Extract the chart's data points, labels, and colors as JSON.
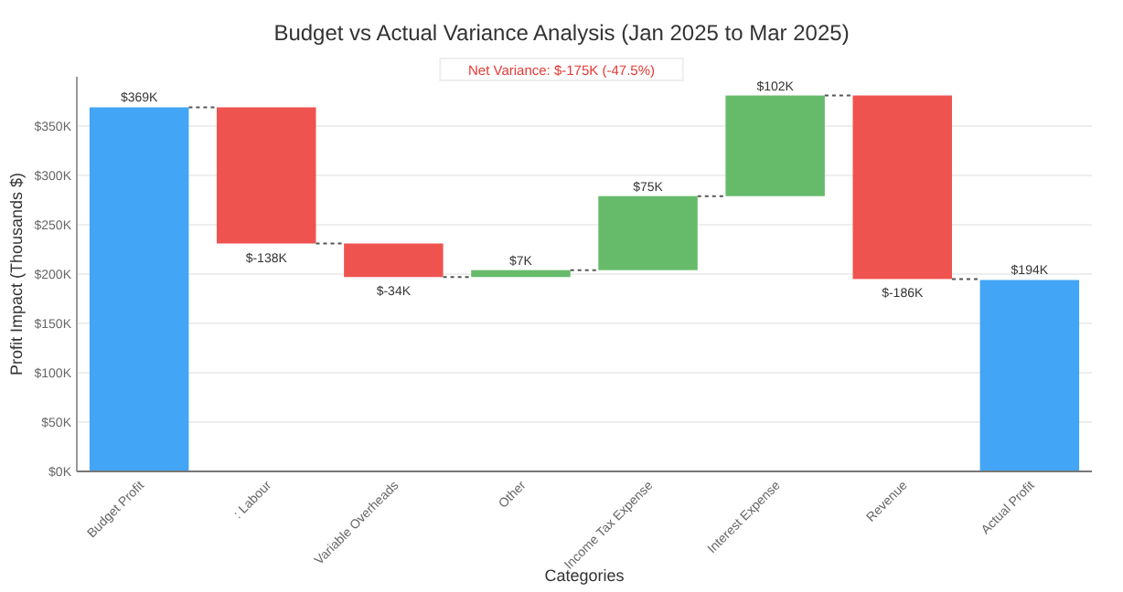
{
  "chart_data": {
    "type": "bar",
    "title": "Budget vs Actual Variance Analysis (Jan 2025 to Mar 2025)",
    "xlabel": "Categories",
    "ylabel": "Profit Impact (Thousands $)",
    "annotations": [
      "Net Variance: $-175K (-47.5%)"
    ],
    "categories": [
      "Budget Profit",
      ": Labour",
      "Variable Overheads",
      "Other",
      "Income Tax Expense",
      "Interest Expense",
      "Revenue",
      "Actual Profit"
    ],
    "values": [
      369,
      -138,
      -34,
      7,
      75,
      102,
      -186,
      194
    ],
    "base": [
      0,
      369,
      231,
      197,
      204,
      279,
      381,
      0
    ],
    "colors": [
      "#42a5f5",
      "#ef5350",
      "#ef5350",
      "#66bb6a",
      "#66bb6a",
      "#66bb6a",
      "#ef5350",
      "#42a5f5"
    ],
    "value_labels": [
      "$369K",
      "$-138K",
      "$-34K",
      "$7K",
      "$75K",
      "$102K",
      "$-186K",
      "$194K"
    ],
    "ylim": [
      0,
      400
    ],
    "yticks": [
      {
        "value": 0,
        "label": "$0K"
      },
      {
        "value": 50,
        "label": "$50K"
      },
      {
        "value": 100,
        "label": "$100K"
      },
      {
        "value": 150,
        "label": "$150K"
      },
      {
        "value": 200,
        "label": "$200K"
      },
      {
        "value": 250,
        "label": "$250K"
      },
      {
        "value": 300,
        "label": "$300K"
      },
      {
        "value": 350,
        "label": "$350K"
      }
    ],
    "grid": "y"
  }
}
